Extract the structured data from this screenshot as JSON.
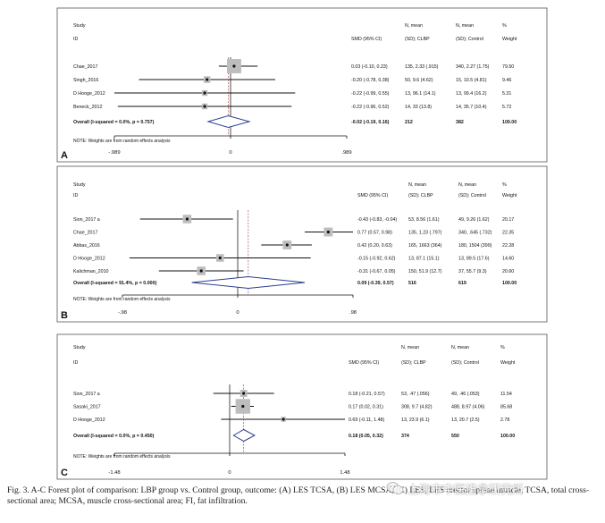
{
  "headers": {
    "study": "Study",
    "id": "ID",
    "smd": "SMD (95% CI)",
    "n_mean_1": "N, mean",
    "sd_clbp": "(SD); CLBP",
    "n_mean_2": "N, mean",
    "sd_control": "(SD); Control",
    "pct": "%",
    "weight": "Weight"
  },
  "note": "NOTE: Weights are from random effects analysis",
  "caption": "Fig. 3.  A-C Forest plot of comparison: LBP group vs. Control group, outcome: (A) LES TCSA, (B) LES MCSA, (C) LES, LES erector spinae muscle, TCSA, total cross-sectional area; MCSA, muscle cross-sectional area; FI, fat infiltration.",
  "watermark": "上海市中医推拿研究所",
  "chart_data": [
    {
      "type": "forest",
      "panel": "A",
      "x_range": [
        -0.989,
        0.989
      ],
      "tick_labels": [
        "-.989",
        "0",
        ".989"
      ],
      "ticks": [
        -0.989,
        0,
        0.989
      ],
      "studies": [
        {
          "id": "Chae_2017",
          "smd": 0.03,
          "lo": -0.1,
          "hi": 0.23,
          "smd_text": "0.03 (-0.10, 0.23)",
          "clbp": "135, 2.33 (.915)",
          "control": "340, 2.27 (1.75)",
          "weight": "79.50",
          "weight_value": 79.5
        },
        {
          "id": "Singh_2016",
          "smd": -0.2,
          "lo": -0.78,
          "hi": 0.38,
          "smd_text": "-0.20 (-0.78, 0.38)",
          "clbp": "50, 9.6 (4.62)",
          "control": "15, 10.5 (4.81)",
          "weight": "9.46",
          "weight_value": 9.46
        },
        {
          "id": "D Hooge_2012",
          "smd": -0.22,
          "lo": -0.99,
          "hi": 0.55,
          "smd_text": "-0.22 (-0.99, 0.55)",
          "clbp": "13, 96.1 (14.1)",
          "control": "13, 99.4 (16.2)",
          "weight": "5.31",
          "weight_value": 5.31
        },
        {
          "id": "Beneck_2012",
          "smd": -0.22,
          "lo": -0.96,
          "hi": 0.52,
          "smd_text": "-0.22 (-0.96, 0.52)",
          "clbp": "14, 33 (13.8)",
          "control": "14, 35.7 (10.4)",
          "weight": "5.72",
          "weight_value": 5.72
        }
      ],
      "overall": {
        "label": "Overall  (I-squared = 0.0%, p = 0.757)",
        "smd": -0.02,
        "lo": -0.19,
        "hi": 0.16,
        "smd_text": "-0.02 (-0.19, 0.16)",
        "clbp": "212",
        "control": "382",
        "weight": "100.00"
      }
    },
    {
      "type": "forest",
      "panel": "B",
      "x_range": [
        -0.98,
        0.98
      ],
      "tick_labels": [
        "-.98",
        "0",
        ".98"
      ],
      "ticks": [
        -0.98,
        0,
        0.98
      ],
      "studies": [
        {
          "id": "Sion_2017 a",
          "smd": -0.43,
          "lo": -0.83,
          "hi": -0.04,
          "smd_text": "-0.43 (-0.83, -0.04)",
          "clbp": "53, 8.56 (1.61)",
          "control": "49, 9.26 (1.62)",
          "weight": "20.17",
          "weight_value": 20.17
        },
        {
          "id": "Chae_2017",
          "smd": 0.77,
          "lo": 0.57,
          "hi": 0.98,
          "smd_text": "0.77 (0.57, 0.98)",
          "clbp": "135, 1.23 (.797)",
          "control": "340, .645 (.732)",
          "weight": "22.35",
          "weight_value": 22.35
        },
        {
          "id": "Abbas_2016",
          "smd": 0.42,
          "lo": 0.2,
          "hi": 0.63,
          "smd_text": "0.42 (0.20, 0.63)",
          "clbp": "165, 1663 (364)",
          "control": "180, 1504 (399)",
          "weight": "22.28",
          "weight_value": 22.28
        },
        {
          "id": "D Hooge_2012",
          "smd": -0.15,
          "lo": -0.92,
          "hi": 0.62,
          "smd_text": "-0.15 (-0.92, 0.62)",
          "clbp": "13, 87.1 (15.1)",
          "control": "13, 89.5 (17.6)",
          "weight": "14.60",
          "weight_value": 14.6
        },
        {
          "id": "Kalichman_2010",
          "smd": -0.31,
          "lo": -0.67,
          "hi": 0.05,
          "smd_text": "-0.31 (-0.67, 0.05)",
          "clbp": "150, 51.9 (12.7)",
          "control": "37, 55.7 (9.3)",
          "weight": "20.60",
          "weight_value": 20.6
        }
      ],
      "overall": {
        "label": "Overall  (I-squared = 91.4%, p = 0.000)",
        "smd": 0.09,
        "lo": -0.39,
        "hi": 0.57,
        "smd_text": "0.09 (-0.39, 0.57)",
        "clbp": "516",
        "control": "619",
        "weight": "100.00"
      }
    },
    {
      "type": "forest",
      "panel": "C",
      "x_range": [
        -1.48,
        1.48
      ],
      "tick_labels": [
        "-1.48",
        "0",
        "1.48"
      ],
      "ticks": [
        -1.48,
        0,
        1.48
      ],
      "studies": [
        {
          "id": "Sion_2017 a",
          "smd": 0.18,
          "lo": -0.21,
          "hi": 0.57,
          "smd_text": "0.18 (-0.21, 0.57)",
          "clbp": "53, .47 (.056)",
          "control": "49, .46 (.053)",
          "weight": "11.54",
          "weight_value": 11.54
        },
        {
          "id": "Sasaki_2017",
          "smd": 0.17,
          "lo": 0.02,
          "hi": 0.31,
          "smd_text": "0.17 (0.02, 0.31)",
          "clbp": "308, 9.7 (4.82)",
          "control": "488, 8.97 (4.06)",
          "weight": "85.68",
          "weight_value": 85.68
        },
        {
          "id": "D Hooge_2012",
          "smd": 0.69,
          "lo": -0.11,
          "hi": 1.48,
          "smd_text": "0.69 (-0.11, 1.48)",
          "clbp": "13, 23.9 (6.1)",
          "control": "13, 20.7 (2.5)",
          "weight": "2.78",
          "weight_value": 2.78
        }
      ],
      "overall": {
        "label": "Overall  (I-squared = 0.0%, p = 0.450)",
        "smd": 0.18,
        "lo": 0.05,
        "hi": 0.32,
        "smd_text": "0.18 (0.05, 0.32)",
        "clbp": "374",
        "control": "550",
        "weight": "100.00"
      }
    }
  ]
}
